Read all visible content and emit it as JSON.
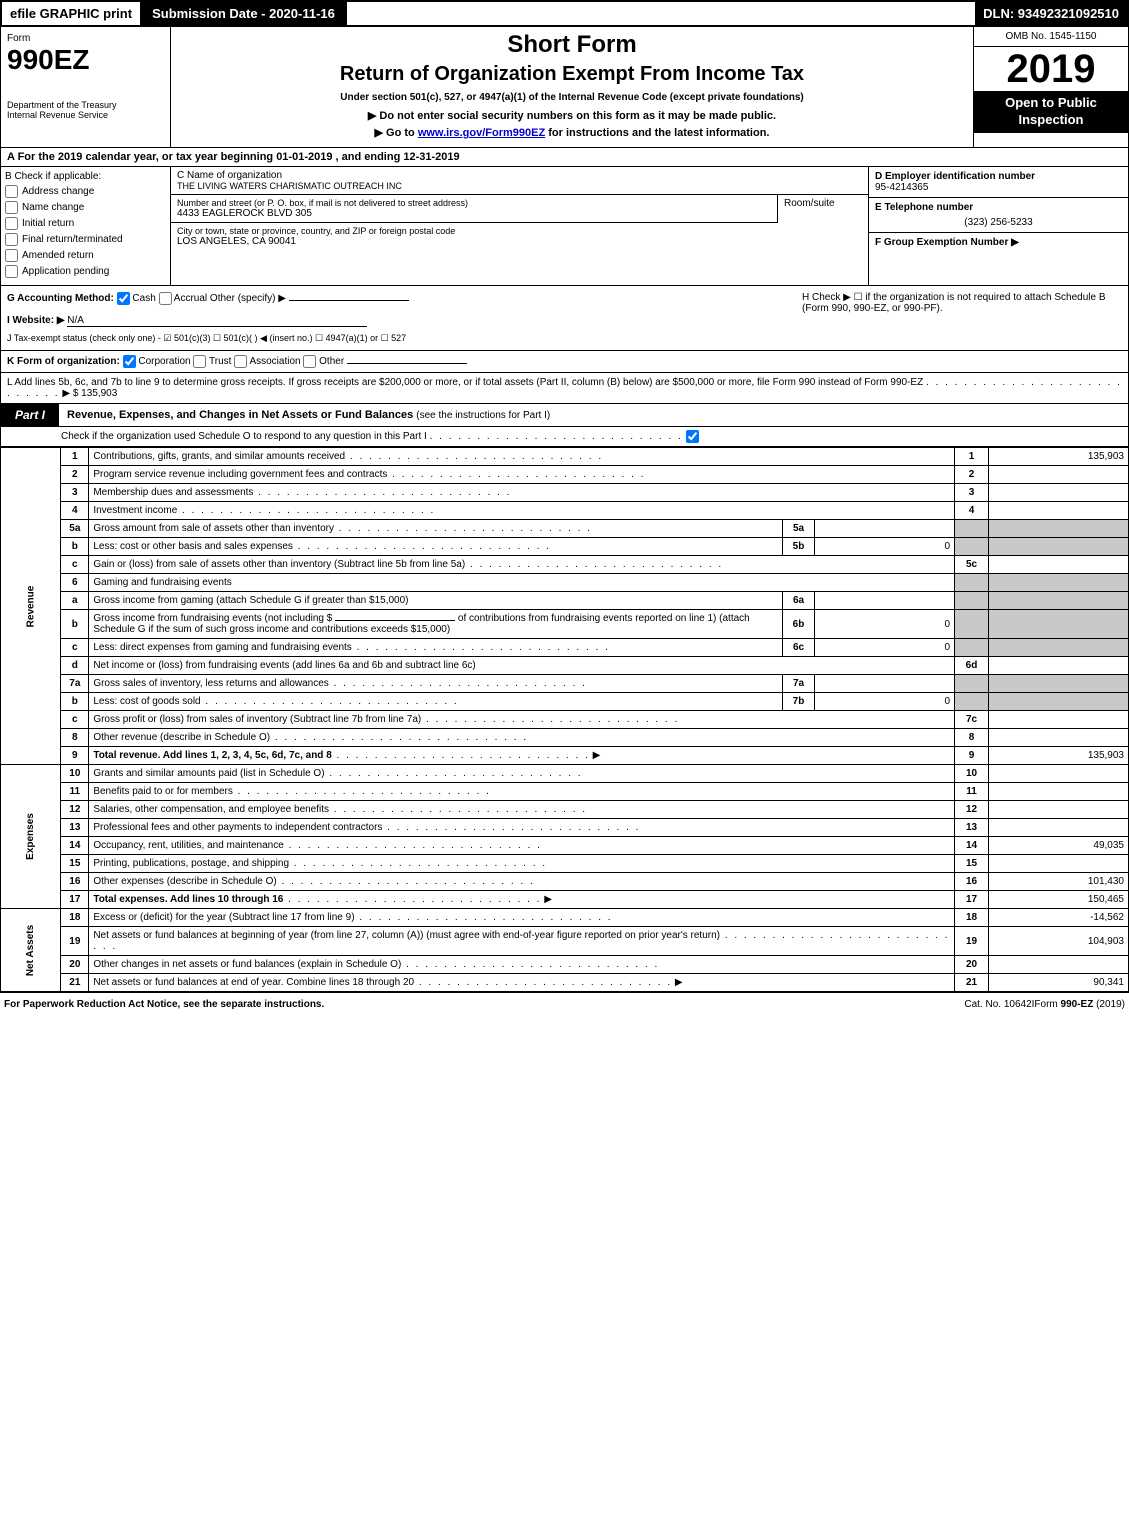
{
  "topbar": {
    "efile": "efile GRAPHIC print",
    "submission": "Submission Date - 2020-11-16",
    "dln": "DLN: 93492321092510"
  },
  "header": {
    "form_label": "Form",
    "form_number": "990EZ",
    "dept": "Department of the Treasury",
    "irs": "Internal Revenue Service",
    "short_form": "Short Form",
    "return_title": "Return of Organization Exempt From Income Tax",
    "subtitle": "Under section 501(c), 527, or 4947(a)(1) of the Internal Revenue Code (except private foundations)",
    "warn": "▶ Do not enter social security numbers on this form as it may be made public.",
    "goto_pre": "▶ Go to ",
    "goto_link": "www.irs.gov/Form990EZ",
    "goto_post": " for instructions and the latest information.",
    "omb": "OMB No. 1545-1150",
    "year": "2019",
    "open": "Open to Public Inspection"
  },
  "calyear": "A For the 2019 calendar year, or tax year beginning 01-01-2019 , and ending 12-31-2019",
  "boxB": {
    "title": "B Check if applicable:",
    "items": [
      "Address change",
      "Name change",
      "Initial return",
      "Final return/terminated",
      "Amended return",
      "Application pending"
    ]
  },
  "boxC": {
    "label": "C Name of organization",
    "org": "THE LIVING WATERS CHARISMATIC OUTREACH INC",
    "addr_label": "Number and street (or P. O. box, if mail is not delivered to street address)",
    "addr": "4433 EAGLEROCK BLVD 305",
    "room_label": "Room/suite",
    "city_label": "City or town, state or province, country, and ZIP or foreign postal code",
    "city": "LOS ANGELES, CA   90041"
  },
  "boxD": {
    "label": "D Employer identification number",
    "val": "95-4214365"
  },
  "boxE": {
    "label": "E Telephone number",
    "val": "(323) 256-5233"
  },
  "boxF": {
    "label": "F Group Exemption Number   ▶"
  },
  "g": {
    "label": "G Accounting Method:",
    "other": "Other (specify) ▶",
    "cash": "Cash",
    "accrual": "Accrual"
  },
  "h": {
    "label": "H Check ▶ ☐ if the organization is not required to attach Schedule B",
    "sub": "(Form 990, 990-EZ, or 990-PF)."
  },
  "i": {
    "label": "I Website: ▶",
    "val": "N/A"
  },
  "j": "J Tax-exempt status (check only one) - ☑ 501(c)(3) ☐ 501(c)(  ) ◀ (insert no.) ☐ 4947(a)(1) or ☐ 527",
  "k": {
    "label": "K Form of organization:",
    "corp": "Corporation",
    "trust": "Trust",
    "assoc": "Association",
    "other": "Other"
  },
  "l": {
    "text": "L Add lines 5b, 6c, and 7b to line 9 to determine gross receipts. If gross receipts are $200,000 or more, or if total assets (Part II, column (B) below) are $500,000 or more, file Form 990 instead of Form 990-EZ",
    "arrow": "▶ $ 135,903"
  },
  "part1": {
    "label": "Part I",
    "title": "Revenue, Expenses, and Changes in Net Assets or Fund Balances",
    "sub": "(see the instructions for Part I)",
    "checkO": "Check if the organization used Schedule O to respond to any question in this Part I"
  },
  "side": {
    "rev": "Revenue",
    "exp": "Expenses",
    "net": "Net Assets"
  },
  "lines": {
    "l1": {
      "n": "1",
      "d": "Contributions, gifts, grants, and similar amounts received",
      "box": "1",
      "v": "135,903"
    },
    "l2": {
      "n": "2",
      "d": "Program service revenue including government fees and contracts",
      "box": "2",
      "v": ""
    },
    "l3": {
      "n": "3",
      "d": "Membership dues and assessments",
      "box": "3",
      "v": ""
    },
    "l4": {
      "n": "4",
      "d": "Investment income",
      "box": "4",
      "v": ""
    },
    "l5a": {
      "n": "5a",
      "d": "Gross amount from sale of assets other than inventory",
      "mini": "5a",
      "mv": ""
    },
    "l5b": {
      "n": "b",
      "d": "Less: cost or other basis and sales expenses",
      "mini": "5b",
      "mv": "0"
    },
    "l5c": {
      "n": "c",
      "d": "Gain or (loss) from sale of assets other than inventory (Subtract line 5b from line 5a)",
      "box": "5c",
      "v": ""
    },
    "l6": {
      "n": "6",
      "d": "Gaming and fundraising events"
    },
    "l6a": {
      "n": "a",
      "d": "Gross income from gaming (attach Schedule G if greater than $15,000)",
      "mini": "6a",
      "mv": ""
    },
    "l6b": {
      "n": "b",
      "d": "Gross income from fundraising events (not including $",
      "d2": "of contributions from fundraising events reported on line 1) (attach Schedule G if the sum of such gross income and contributions exceeds $15,000)",
      "mini": "6b",
      "mv": "0"
    },
    "l6c": {
      "n": "c",
      "d": "Less: direct expenses from gaming and fundraising events",
      "mini": "6c",
      "mv": "0"
    },
    "l6d": {
      "n": "d",
      "d": "Net income or (loss) from fundraising events (add lines 6a and 6b and subtract line 6c)",
      "box": "6d",
      "v": ""
    },
    "l7a": {
      "n": "7a",
      "d": "Gross sales of inventory, less returns and allowances",
      "mini": "7a",
      "mv": ""
    },
    "l7b": {
      "n": "b",
      "d": "Less: cost of goods sold",
      "mini": "7b",
      "mv": "0"
    },
    "l7c": {
      "n": "c",
      "d": "Gross profit or (loss) from sales of inventory (Subtract line 7b from line 7a)",
      "box": "7c",
      "v": ""
    },
    "l8": {
      "n": "8",
      "d": "Other revenue (describe in Schedule O)",
      "box": "8",
      "v": ""
    },
    "l9": {
      "n": "9",
      "d": "Total revenue. Add lines 1, 2, 3, 4, 5c, 6d, 7c, and 8",
      "box": "9",
      "v": "135,903",
      "arrow": "▶"
    },
    "l10": {
      "n": "10",
      "d": "Grants and similar amounts paid (list in Schedule O)",
      "box": "10",
      "v": ""
    },
    "l11": {
      "n": "11",
      "d": "Benefits paid to or for members",
      "box": "11",
      "v": ""
    },
    "l12": {
      "n": "12",
      "d": "Salaries, other compensation, and employee benefits",
      "box": "12",
      "v": ""
    },
    "l13": {
      "n": "13",
      "d": "Professional fees and other payments to independent contractors",
      "box": "13",
      "v": ""
    },
    "l14": {
      "n": "14",
      "d": "Occupancy, rent, utilities, and maintenance",
      "box": "14",
      "v": "49,035"
    },
    "l15": {
      "n": "15",
      "d": "Printing, publications, postage, and shipping",
      "box": "15",
      "v": ""
    },
    "l16": {
      "n": "16",
      "d": "Other expenses (describe in Schedule O)",
      "box": "16",
      "v": "101,430"
    },
    "l17": {
      "n": "17",
      "d": "Total expenses. Add lines 10 through 16",
      "box": "17",
      "v": "150,465",
      "arrow": "▶"
    },
    "l18": {
      "n": "18",
      "d": "Excess or (deficit) for the year (Subtract line 17 from line 9)",
      "box": "18",
      "v": "-14,562"
    },
    "l19": {
      "n": "19",
      "d": "Net assets or fund balances at beginning of year (from line 27, column (A)) (must agree with end-of-year figure reported on prior year's return)",
      "box": "19",
      "v": "104,903"
    },
    "l20": {
      "n": "20",
      "d": "Other changes in net assets or fund balances (explain in Schedule O)",
      "box": "20",
      "v": ""
    },
    "l21": {
      "n": "21",
      "d": "Net assets or fund balances at end of year. Combine lines 18 through 20",
      "box": "21",
      "v": "90,341",
      "arrow": "▶"
    }
  },
  "footer": {
    "left": "For Paperwork Reduction Act Notice, see the separate instructions.",
    "center": "Cat. No. 10642I",
    "right_pre": "Form ",
    "right_form": "990-EZ",
    "right_post": " (2019)"
  },
  "colors": {
    "black": "#000000",
    "white": "#ffffff",
    "grey": "#c8c8c8",
    "link": "#0000cc"
  }
}
